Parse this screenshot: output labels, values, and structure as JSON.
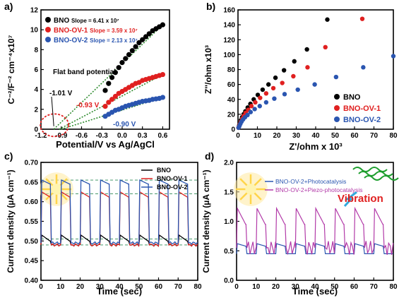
{
  "chart_data": [
    {
      "panel_label": "a)",
      "type": "scatter",
      "xlabel": "Potential/V vs Ag/AgCl",
      "ylabel": "C⁻²/F⁻² cm⁻⁴x10⁷",
      "xlim": [
        -1.2,
        0.7
      ],
      "ylim": [
        0,
        12
      ],
      "xticks": [
        -1.2,
        -0.9,
        -0.6,
        -0.3,
        0.0,
        0.3,
        0.6
      ],
      "xtick_labels": [
        "-1.2",
        "-0.9",
        "-0.6",
        "-0.3",
        "0.0",
        "0.3",
        "0.6"
      ],
      "yticks": [
        0,
        2,
        4,
        6,
        8,
        10,
        12
      ],
      "legend_position": "top-left",
      "series": [
        {
          "name": "BNO",
          "slope_label": "Slope = 6.41 x 10⁷",
          "color": "#000000",
          "x": [
            -0.25,
            -0.2,
            -0.15,
            -0.1,
            -0.05,
            0.0,
            0.05,
            0.1,
            0.15,
            0.2,
            0.25,
            0.3,
            0.35,
            0.4,
            0.45,
            0.5,
            0.55,
            0.6
          ],
          "y": [
            3.9,
            4.6,
            5.2,
            5.7,
            6.2,
            6.7,
            7.1,
            7.5,
            7.9,
            8.3,
            8.7,
            9.0,
            9.3,
            9.6,
            9.9,
            10.1,
            10.3,
            10.5
          ],
          "intercept": -1.01,
          "fit_color": "#2e8b2e"
        },
        {
          "name": "BNO-OV-1",
          "slope_label": "Slope = 3.59 x 10⁷",
          "color": "#e02020",
          "x": [
            -0.25,
            -0.2,
            -0.15,
            -0.1,
            -0.05,
            0.0,
            0.05,
            0.1,
            0.15,
            0.2,
            0.25,
            0.3,
            0.35,
            0.4,
            0.45,
            0.5,
            0.55,
            0.6
          ],
          "y": [
            2.3,
            2.7,
            3.0,
            3.3,
            3.6,
            3.8,
            4.0,
            4.2,
            4.4,
            4.6,
            4.7,
            4.9,
            5.0,
            5.1,
            5.2,
            5.3,
            5.4,
            5.5
          ],
          "intercept": -0.93,
          "fit_color": "#2e8b2e"
        },
        {
          "name": "BNO-OV-2",
          "slope_label": "Slope = 2.13 x 10⁷",
          "color": "#2a55b0",
          "x": [
            -0.25,
            -0.2,
            -0.15,
            -0.1,
            -0.05,
            0.0,
            0.05,
            0.1,
            0.15,
            0.2,
            0.25,
            0.3,
            0.35,
            0.4,
            0.45,
            0.5,
            0.55,
            0.6
          ],
          "y": [
            1.3,
            1.5,
            1.7,
            1.9,
            2.0,
            2.15,
            2.3,
            2.4,
            2.5,
            2.6,
            2.7,
            2.8,
            2.85,
            2.9,
            3.0,
            3.05,
            3.1,
            3.2
          ],
          "intercept": -0.9,
          "fit_color": "#2e8b2e"
        }
      ],
      "annotations": {
        "flat_band": "Flat band potential",
        "v1": "-1.01 V",
        "v2": "-0.93 V",
        "v3": "-0.90 V"
      }
    },
    {
      "panel_label": "b)",
      "type": "scatter",
      "xlabel": "Z'/ohm x 10³",
      "ylabel": "Z''/ohm x10³",
      "xlim": [
        0,
        80
      ],
      "ylim": [
        0,
        160
      ],
      "xticks": [
        0,
        10,
        20,
        30,
        40,
        50,
        60,
        70,
        80
      ],
      "yticks": [
        0,
        20,
        40,
        60,
        80,
        100,
        120,
        140,
        160
      ],
      "legend_position": "bottom-right",
      "series": [
        {
          "name": "BNO",
          "color": "#000000",
          "x": [
            0.3,
            0.6,
            1.0,
            1.5,
            2.1,
            2.9,
            3.8,
            5.0,
            6.4,
            8.1,
            10.2,
            12.7,
            15.7,
            19.3,
            23.7,
            29.0,
            35.5,
            46.0
          ],
          "y": [
            2,
            5,
            8,
            12,
            16,
            20,
            24,
            29,
            34,
            40,
            46,
            53,
            60,
            69,
            79,
            91,
            107,
            147
          ]
        },
        {
          "name": "BNO-OV-1",
          "color": "#e02020",
          "x": [
            0.3,
            0.6,
            1.0,
            1.5,
            2.2,
            3.0,
            4.0,
            5.3,
            6.9,
            8.9,
            11.4,
            14.5,
            18.2,
            22.8,
            28.5,
            35.8,
            45.0,
            64.0
          ],
          "y": [
            2,
            4,
            7,
            10,
            14,
            18,
            22,
            26,
            31,
            36,
            42,
            48,
            55,
            62,
            71,
            83,
            110,
            148
          ]
        },
        {
          "name": "BNO-OV-2",
          "color": "#2a55b0",
          "x": [
            0.3,
            0.7,
            1.2,
            1.8,
            2.6,
            3.6,
            4.9,
            6.5,
            8.6,
            11.2,
            14.5,
            18.7,
            24.0,
            30.8,
            39.5,
            50.5,
            64.5,
            80.0
          ],
          "y": [
            2,
            4,
            7,
            10,
            13,
            16,
            19,
            23,
            27,
            31,
            36,
            41,
            47,
            53,
            60,
            70,
            83,
            98
          ]
        }
      ]
    },
    {
      "panel_label": "c)",
      "type": "line",
      "xlabel": "Time (sec)",
      "ylabel": "Current density (µA cm⁻¹)",
      "xlim": [
        0,
        80
      ],
      "ylim": [
        0.4,
        0.7
      ],
      "xticks": [
        0,
        10,
        20,
        30,
        40,
        50,
        60,
        70,
        80
      ],
      "yticks": [
        0.4,
        0.45,
        0.5,
        0.55,
        0.6,
        0.65,
        0.7
      ],
      "ytick_labels": [
        "0.40",
        "0.45",
        "0.50",
        "0.55",
        "0.60",
        "0.65",
        "0.70"
      ],
      "legend_position": "top-right",
      "reference_lines": [
        0.655,
        0.62,
        0.505,
        0.49
      ],
      "cycle_starts": [
        0,
        10,
        20,
        30,
        40,
        50,
        60,
        70
      ],
      "series": [
        {
          "name": "BNO",
          "color": "#000000",
          "on": 0.515,
          "on_end": 0.5,
          "off": 0.49
        },
        {
          "name": "BNO-OV-1",
          "color": "#e02020",
          "on": 0.625,
          "on_end": 0.612,
          "off": 0.49
        },
        {
          "name": "BNO-OV-2",
          "color": "#2a55b0",
          "on": 0.655,
          "on_end": 0.645,
          "off": 0.495
        }
      ]
    },
    {
      "panel_label": "d)",
      "type": "line",
      "xlabel": "Time (sec)",
      "ylabel": "Current density (µA cm⁻¹)",
      "xlim": [
        0,
        80
      ],
      "ylim": [
        0.0,
        2.0
      ],
      "xticks": [
        0,
        10,
        20,
        30,
        40,
        50,
        60,
        70,
        80
      ],
      "yticks": [
        0.0,
        0.5,
        1.0,
        1.5,
        2.0
      ],
      "ytick_labels": [
        "0.0",
        "0.5",
        "1.0",
        "1.5",
        "2.0"
      ],
      "legend_position": "top-left",
      "annotation": "Vibration",
      "cycle_starts": [
        0,
        10,
        20,
        30,
        40,
        50,
        60,
        70
      ],
      "series": [
        {
          "name": "BNO-OV-2+Photocatalysis",
          "color": "#2a55b0",
          "on": 0.62,
          "on_end": 0.58,
          "off": 0.45
        },
        {
          "name": "BNO-OV-2+Piezo-photocatalysis",
          "color": "#b23aa8",
          "on": 1.22,
          "on_end": 0.95,
          "off": 0.55
        }
      ]
    }
  ]
}
